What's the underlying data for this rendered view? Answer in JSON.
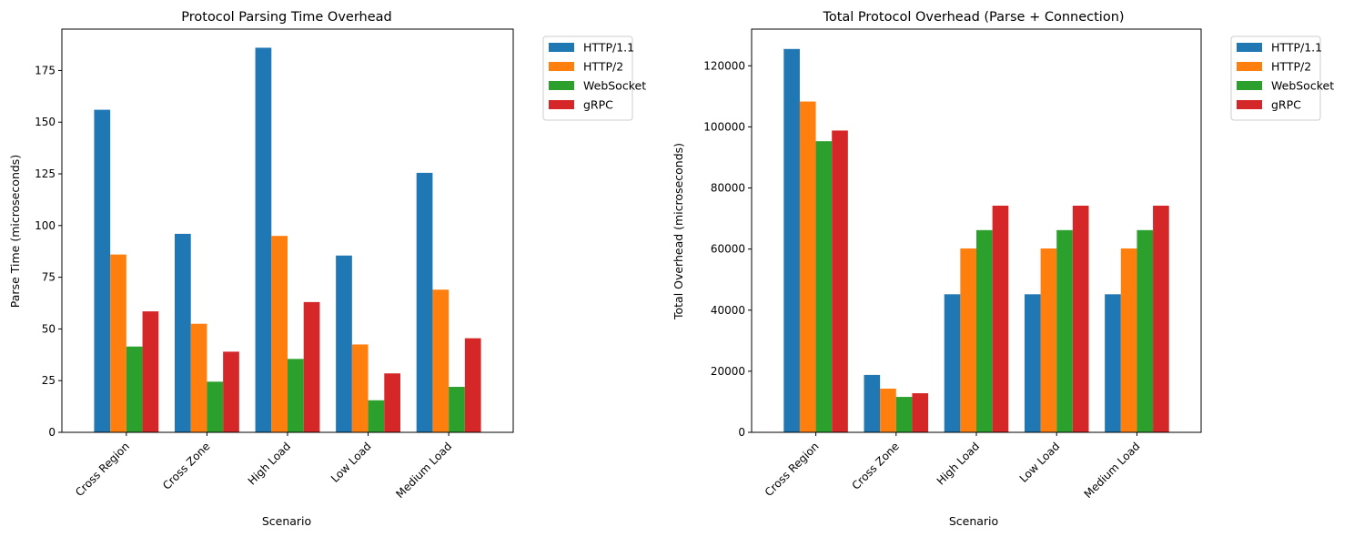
{
  "chart_data": [
    {
      "type": "bar",
      "title": "Protocol Parsing Time Overhead",
      "xlabel": "Scenario",
      "ylabel": "Parse Time (microseconds)",
      "ylim": [
        0,
        195
      ],
      "yticks": [
        0,
        25,
        50,
        75,
        100,
        125,
        150,
        175
      ],
      "categories": [
        "Cross Region",
        "Cross Zone",
        "High Load",
        "Low Load",
        "Medium Load"
      ],
      "series": [
        {
          "name": "HTTP/1.1",
          "color": "#1f77b4",
          "values": [
            156,
            96,
            186,
            85.5,
            125.5
          ]
        },
        {
          "name": "HTTP/2",
          "color": "#ff7f0e",
          "values": [
            86,
            52.5,
            95,
            42.5,
            69
          ]
        },
        {
          "name": "WebSocket",
          "color": "#2ca02c",
          "values": [
            41.5,
            24.5,
            35.5,
            15.5,
            22
          ]
        },
        {
          "name": "gRPC",
          "color": "#d62728",
          "values": [
            58.5,
            39,
            63,
            28.5,
            45.5
          ]
        }
      ],
      "legend": "outside-top-right",
      "grid": false
    },
    {
      "type": "bar",
      "title": "Total Protocol Overhead (Parse + Connection)",
      "xlabel": "Scenario",
      "ylabel": "Total Overhead (microseconds)",
      "ylim": [
        0,
        132000
      ],
      "yticks": [
        0,
        20000,
        40000,
        60000,
        80000,
        100000,
        120000
      ],
      "categories": [
        "Cross Region",
        "Cross Zone",
        "High Load",
        "Low Load",
        "Medium Load"
      ],
      "series": [
        {
          "name": "HTTP/1.1",
          "color": "#1f77b4",
          "values": [
            125500,
            18800,
            45200,
            45200,
            45200
          ]
        },
        {
          "name": "HTTP/2",
          "color": "#ff7f0e",
          "values": [
            108300,
            14300,
            60200,
            60200,
            60200
          ]
        },
        {
          "name": "WebSocket",
          "color": "#2ca02c",
          "values": [
            95300,
            11600,
            66200,
            66200,
            66200
          ]
        },
        {
          "name": "gRPC",
          "color": "#d62728",
          "values": [
            98800,
            12800,
            74200,
            74200,
            74200
          ]
        }
      ],
      "legend": "outside-top-right",
      "grid": false
    }
  ]
}
